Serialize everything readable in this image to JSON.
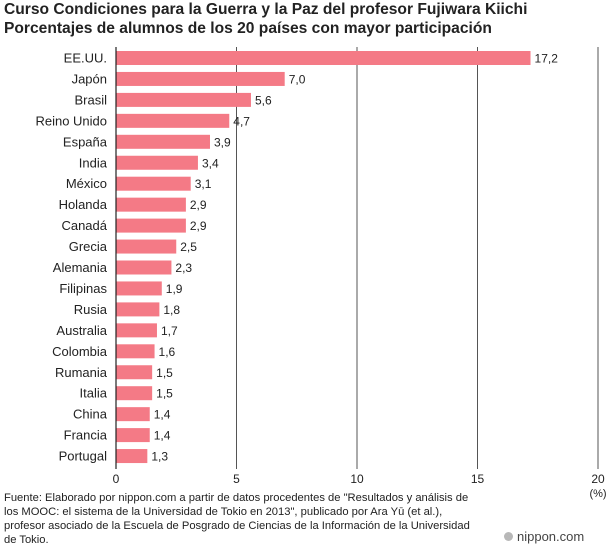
{
  "title": {
    "line1": "Curso Condiciones para la Guerra y la Paz del profesor Fujiwara Kiichi",
    "line2": "Porcentajes de alumnos de los 20 países con mayor participación"
  },
  "chart_data": {
    "type": "bar",
    "orientation": "horizontal",
    "categories": [
      "EE.UU.",
      "Japón",
      "Brasil",
      "Reino Unido",
      "España",
      "India",
      "México",
      "Holanda",
      "Canadá",
      "Grecia",
      "Alemania",
      "Filipinas",
      "Rusia",
      "Australia",
      "Colombia",
      "Rumania",
      "Italia",
      "China",
      "Francia",
      "Portugal"
    ],
    "values": [
      17.2,
      7.0,
      5.6,
      4.7,
      3.9,
      3.4,
      3.1,
      2.9,
      2.9,
      2.5,
      2.3,
      1.9,
      1.8,
      1.7,
      1.6,
      1.5,
      1.5,
      1.4,
      1.4,
      1.3
    ],
    "value_labels": [
      "17,2",
      "7,0",
      "5,6",
      "4,7",
      "3,9",
      "3,4",
      "3,1",
      "2,9",
      "2,9",
      "2,5",
      "2,3",
      "1,9",
      "1,8",
      "1,7",
      "1,6",
      "1,5",
      "1,5",
      "1,4",
      "1,4",
      "1,3"
    ],
    "xlim": [
      0,
      20
    ],
    "xticks": [
      0,
      5,
      10,
      15,
      20
    ],
    "xtick_labels": [
      "0",
      "5",
      "10",
      "15",
      "20"
    ],
    "x_unit": "(%)",
    "grid": true,
    "colors": {
      "bar": "#f47a86",
      "grid": "#555555",
      "axis": "#222222"
    }
  },
  "source": "Fuente: Elaborado por nippon.com a partir de datos procedentes de \"Resultados y análisis de los MOOC: el sistema de la Universidad de Tokio en 2013\", publicado por Ara Yū (et al.), profesor asociado de la Escuela de Posgrado de Ciencias de la Información de la Universidad de Tokio.",
  "logo": {
    "text": "nippon.com",
    "icon": "nippon-dot-icon"
  }
}
